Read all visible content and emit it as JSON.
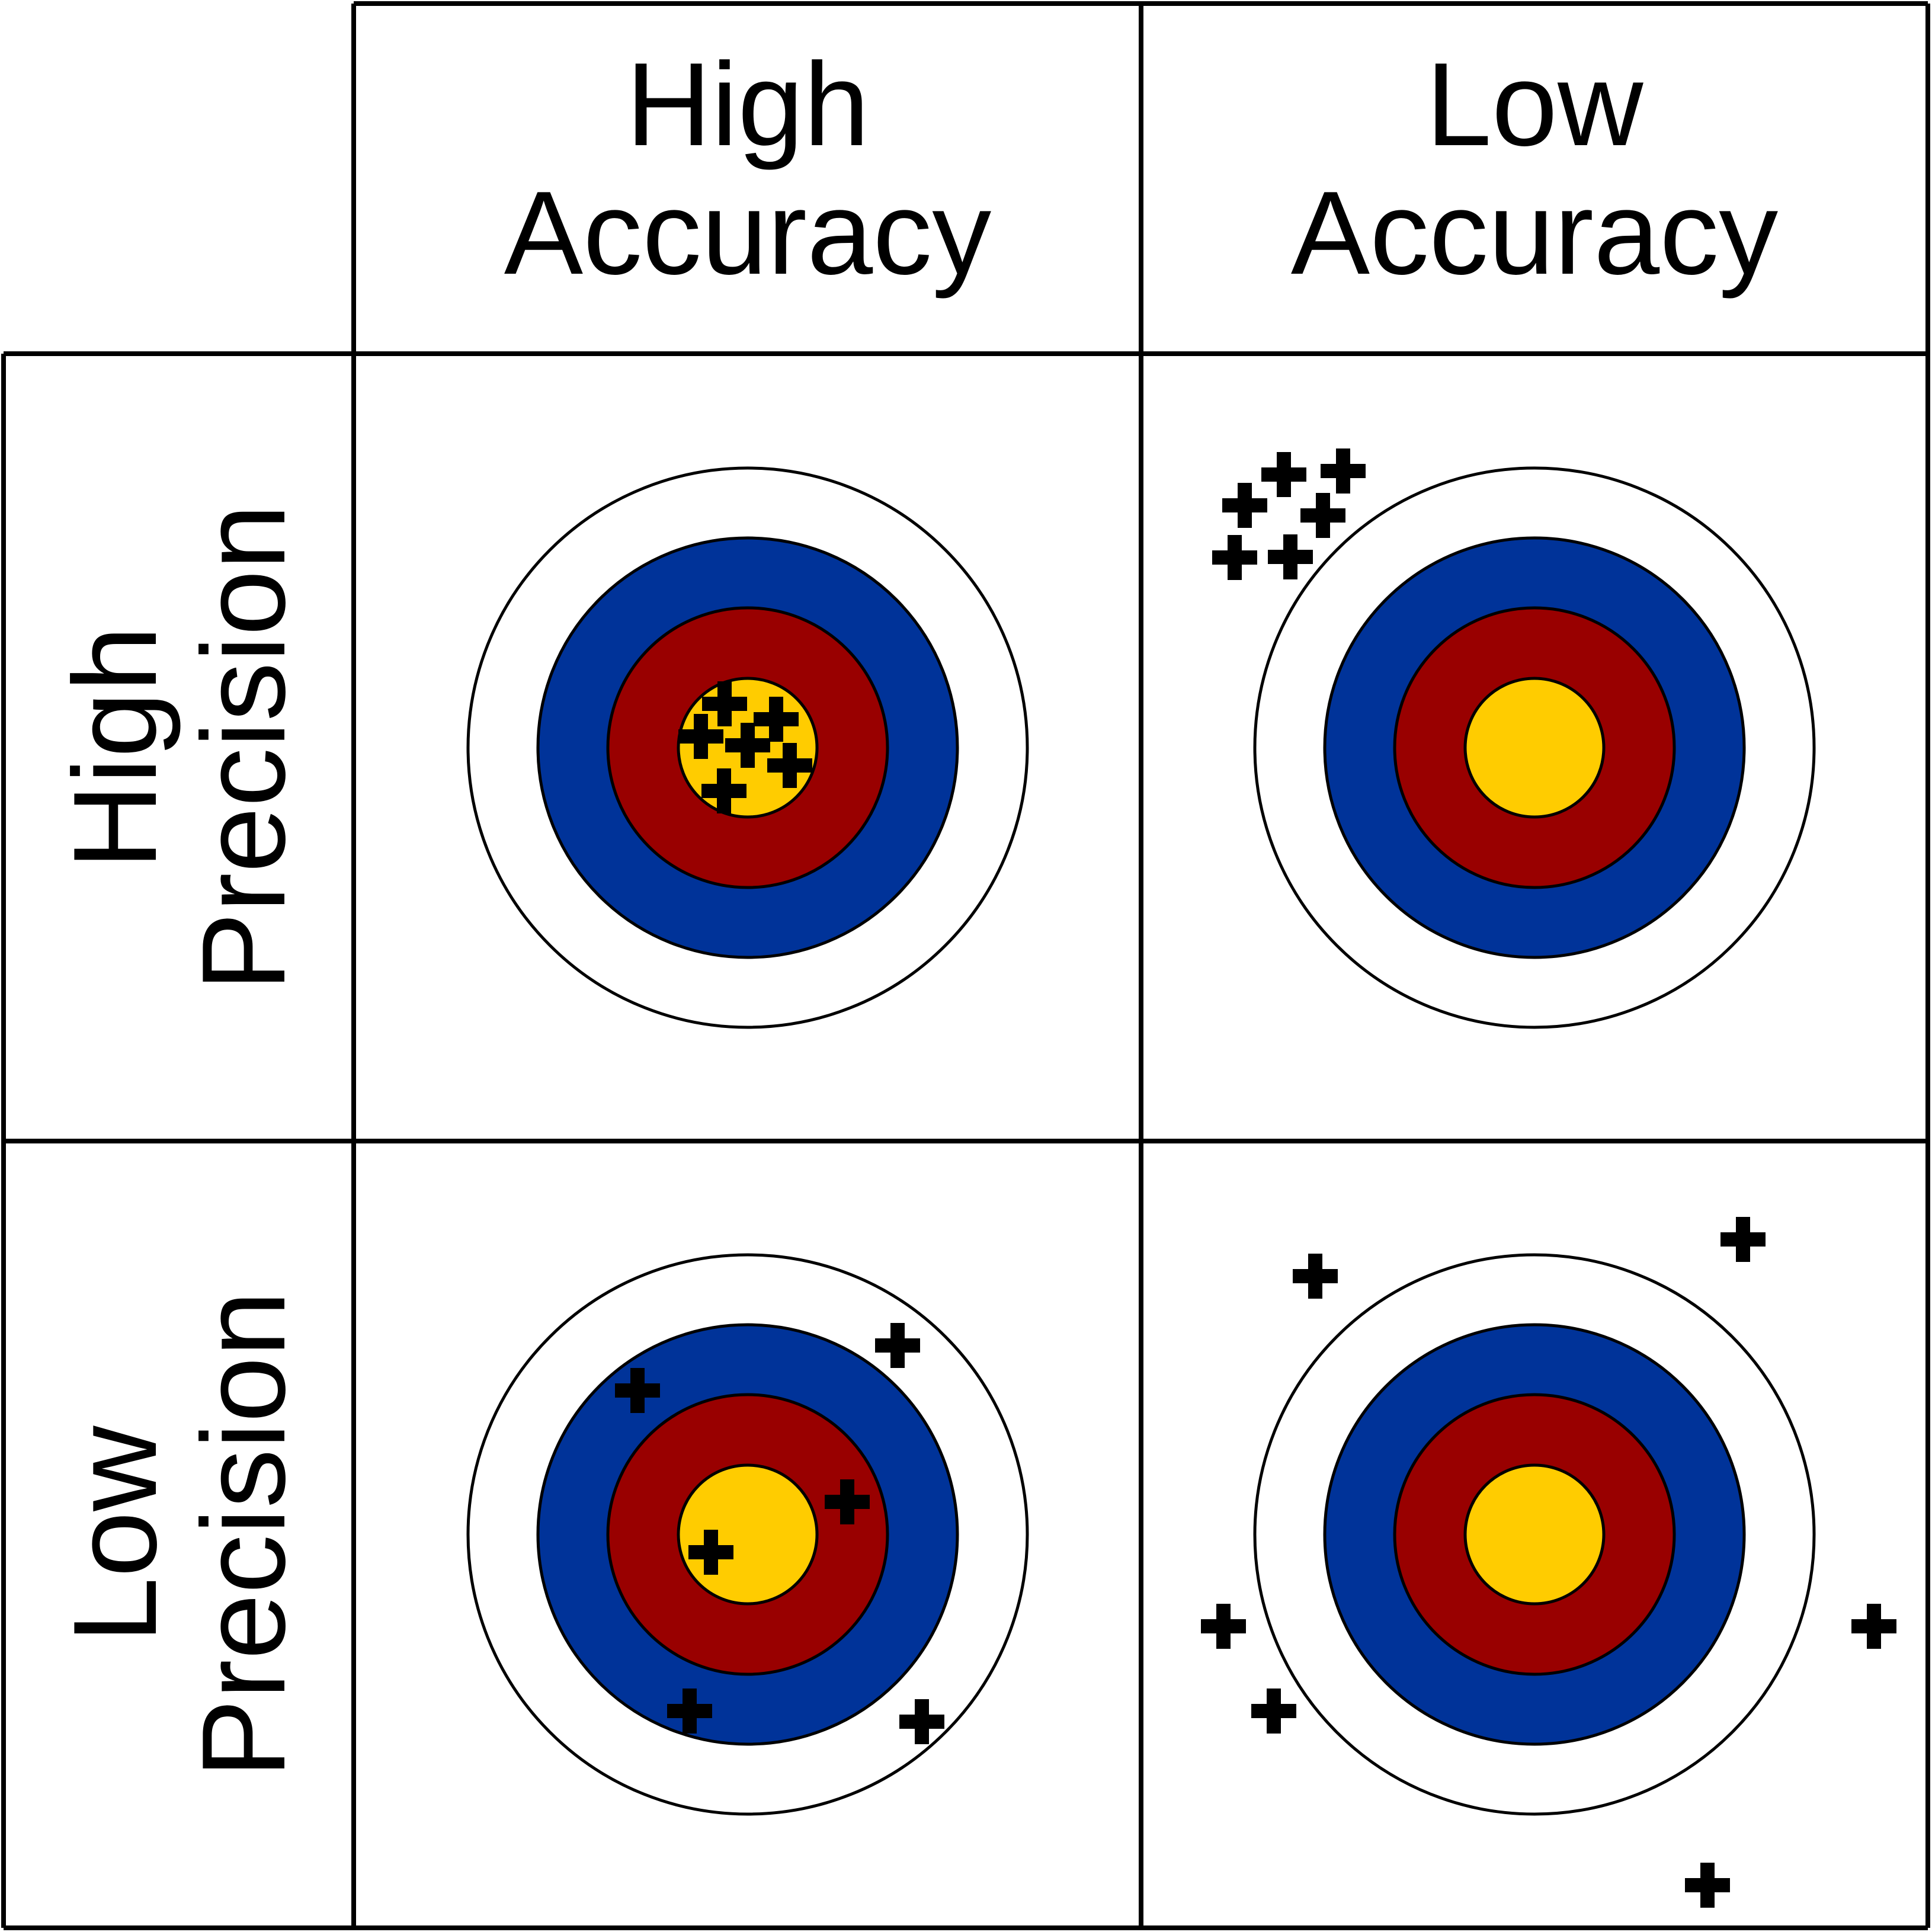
{
  "headers": {
    "columns": [
      {
        "line1": "High",
        "line2": "Accuracy"
      },
      {
        "line1": "Low",
        "line2": "Accuracy"
      }
    ],
    "rows": [
      {
        "line1": "High",
        "line2": "Precision"
      },
      {
        "line1": "Low",
        "line2": "Precision"
      }
    ]
  },
  "colors": {
    "outer_ring": "#FFFFFF",
    "blue_ring": "#003399",
    "red_ring": "#990000",
    "gold_center": "#FFCC00",
    "marker": "#000000",
    "grid_lines": "#000000"
  },
  "targets": [
    {
      "id": "high-accuracy-high-precision",
      "column": "High Accuracy",
      "row": "High Precision",
      "shot_count": 6
    },
    {
      "id": "low-accuracy-high-precision",
      "column": "Low Accuracy",
      "row": "High Precision",
      "shot_count": 6
    },
    {
      "id": "high-accuracy-low-precision",
      "column": "High Accuracy",
      "row": "Low Precision",
      "shot_count": 6
    },
    {
      "id": "low-accuracy-low-precision",
      "column": "Low Accuracy",
      "row": "Low Precision",
      "shot_count": 6
    }
  ]
}
